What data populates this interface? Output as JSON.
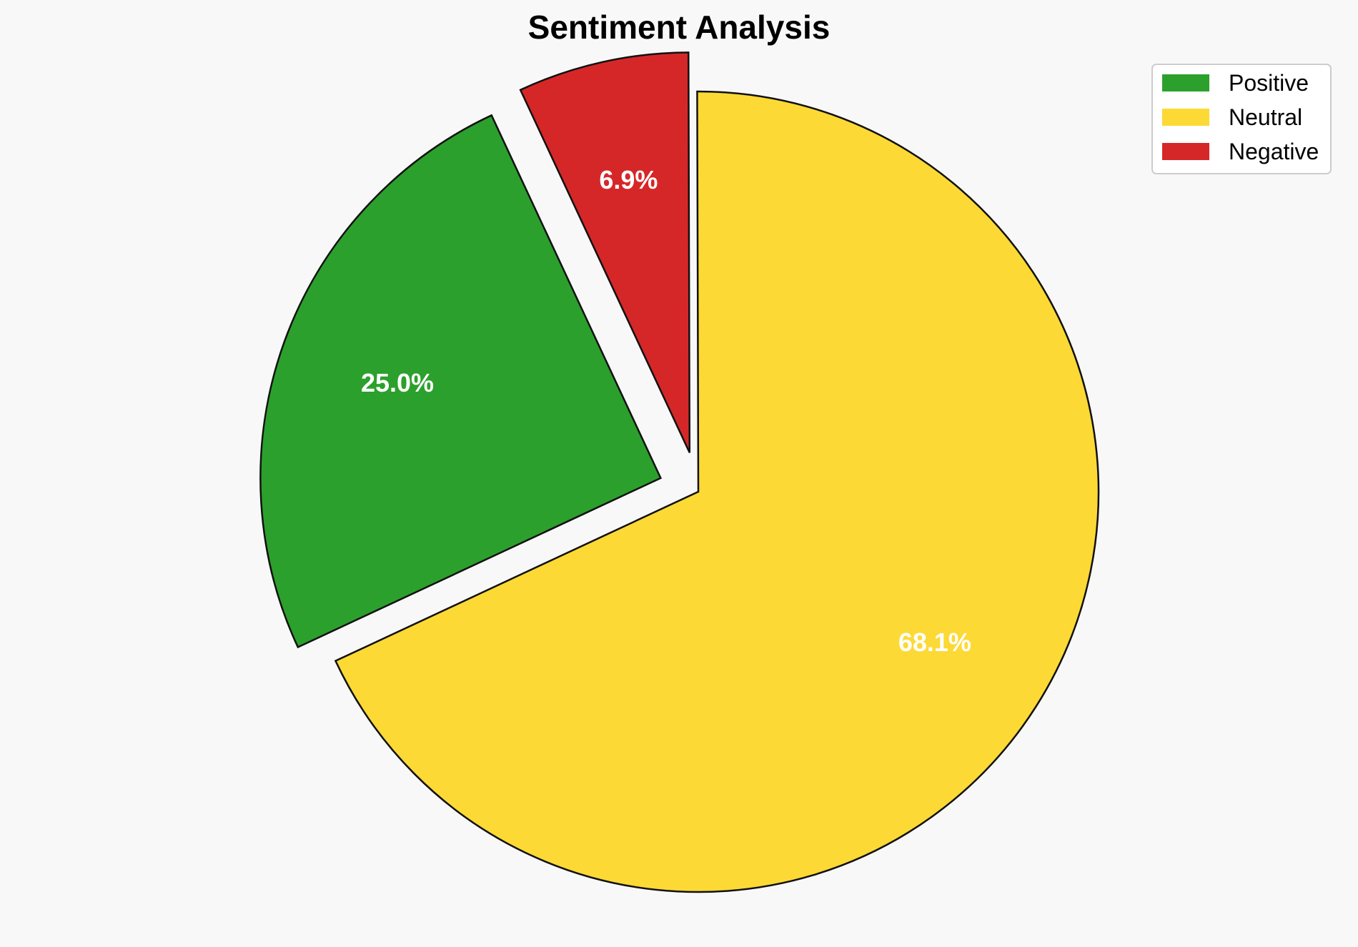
{
  "chart_data": {
    "type": "pie",
    "title": "Sentiment Analysis",
    "categories": [
      "Positive",
      "Neutral",
      "Negative"
    ],
    "values": [
      25.0,
      68.1,
      6.9
    ],
    "labels": [
      "25.0%",
      "68.1%",
      "6.9%"
    ],
    "colors": [
      "#2ca02c",
      "#fdd935",
      "#d62728"
    ],
    "exploded": [
      true,
      false,
      true
    ],
    "legend_position": "top-right"
  }
}
